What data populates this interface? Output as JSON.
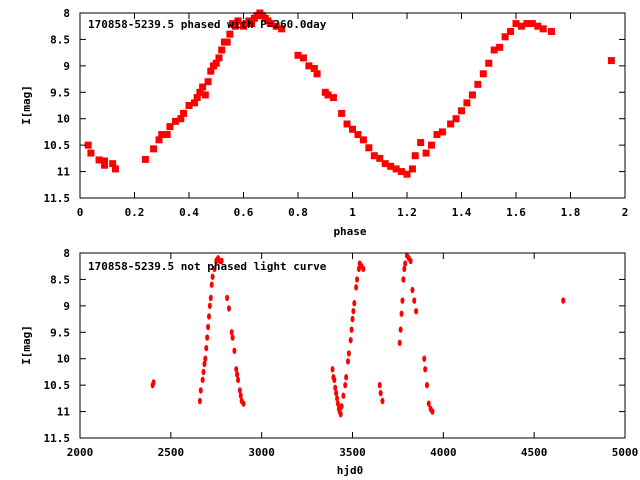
{
  "chart_data": [
    {
      "type": "scatter",
      "title": "170858-5239.5 phased with P=260.0day",
      "xlabel": "phase",
      "ylabel": "I[mag]",
      "xlim": [
        0,
        2
      ],
      "ylim": [
        8,
        11.5
      ],
      "y_inverted": true,
      "xticks": [
        0,
        0.2,
        0.4,
        0.6,
        0.8,
        1,
        1.2,
        1.4,
        1.6,
        1.8,
        2
      ],
      "yticks": [
        8,
        8.5,
        9,
        9.5,
        10,
        10.5,
        11,
        11.5
      ],
      "grid": false,
      "color": "#ff0000",
      "points": [
        [
          0.03,
          10.5
        ],
        [
          0.04,
          10.65
        ],
        [
          0.07,
          10.78
        ],
        [
          0.09,
          10.8
        ],
        [
          0.09,
          10.88
        ],
        [
          0.12,
          10.85
        ],
        [
          0.13,
          10.95
        ],
        [
          0.24,
          10.77
        ],
        [
          0.27,
          10.57
        ],
        [
          0.29,
          10.4
        ],
        [
          0.3,
          10.3
        ],
        [
          0.32,
          10.3
        ],
        [
          0.33,
          10.15
        ],
        [
          0.35,
          10.05
        ],
        [
          0.37,
          10.0
        ],
        [
          0.38,
          9.9
        ],
        [
          0.4,
          9.75
        ],
        [
          0.42,
          9.7
        ],
        [
          0.43,
          9.6
        ],
        [
          0.44,
          9.5
        ],
        [
          0.45,
          9.4
        ],
        [
          0.46,
          9.55
        ],
        [
          0.47,
          9.3
        ],
        [
          0.48,
          9.1
        ],
        [
          0.49,
          9.0
        ],
        [
          0.5,
          8.95
        ],
        [
          0.51,
          8.85
        ],
        [
          0.52,
          8.7
        ],
        [
          0.53,
          8.55
        ],
        [
          0.54,
          8.55
        ],
        [
          0.55,
          8.4
        ],
        [
          0.56,
          8.2
        ],
        [
          0.57,
          8.25
        ],
        [
          0.58,
          8.15
        ],
        [
          0.6,
          8.25
        ],
        [
          0.61,
          8.2
        ],
        [
          0.62,
          8.15
        ],
        [
          0.63,
          8.2
        ],
        [
          0.64,
          8.1
        ],
        [
          0.65,
          8.05
        ],
        [
          0.66,
          8.0
        ],
        [
          0.67,
          8.05
        ],
        [
          0.68,
          8.1
        ],
        [
          0.69,
          8.15
        ],
        [
          0.7,
          8.2
        ],
        [
          0.72,
          8.25
        ],
        [
          0.74,
          8.3
        ],
        [
          0.8,
          8.8
        ],
        [
          0.82,
          8.85
        ],
        [
          0.84,
          9.0
        ],
        [
          0.86,
          9.05
        ],
        [
          0.87,
          9.15
        ],
        [
          0.9,
          9.5
        ],
        [
          0.91,
          9.55
        ],
        [
          0.93,
          9.6
        ],
        [
          0.96,
          9.9
        ],
        [
          0.98,
          10.1
        ],
        [
          1.0,
          10.2
        ],
        [
          1.02,
          10.3
        ],
        [
          1.04,
          10.4
        ],
        [
          1.06,
          10.55
        ],
        [
          1.08,
          10.7
        ],
        [
          1.1,
          10.75
        ],
        [
          1.12,
          10.85
        ],
        [
          1.14,
          10.9
        ],
        [
          1.16,
          10.95
        ],
        [
          1.18,
          11.0
        ],
        [
          1.2,
          11.05
        ],
        [
          1.22,
          10.95
        ],
        [
          1.23,
          10.7
        ],
        [
          1.25,
          10.45
        ],
        [
          1.27,
          10.65
        ],
        [
          1.29,
          10.5
        ],
        [
          1.31,
          10.3
        ],
        [
          1.33,
          10.25
        ],
        [
          1.36,
          10.1
        ],
        [
          1.38,
          10.0
        ],
        [
          1.4,
          9.85
        ],
        [
          1.42,
          9.7
        ],
        [
          1.44,
          9.55
        ],
        [
          1.46,
          9.35
        ],
        [
          1.48,
          9.15
        ],
        [
          1.5,
          8.95
        ],
        [
          1.52,
          8.7
        ],
        [
          1.54,
          8.65
        ],
        [
          1.56,
          8.45
        ],
        [
          1.58,
          8.35
        ],
        [
          1.6,
          8.2
        ],
        [
          1.62,
          8.25
        ],
        [
          1.64,
          8.2
        ],
        [
          1.66,
          8.2
        ],
        [
          1.68,
          8.25
        ],
        [
          1.7,
          8.3
        ],
        [
          1.73,
          8.35
        ],
        [
          1.95,
          8.9
        ]
      ]
    },
    {
      "type": "scatter",
      "title": "170858-5239.5 not phased light curve",
      "xlabel": "hjd0",
      "ylabel": "I[mag]",
      "xlim": [
        2000,
        5000
      ],
      "ylim": [
        8,
        11.5
      ],
      "y_inverted": true,
      "xticks": [
        2000,
        2500,
        3000,
        3500,
        4000,
        4500,
        5000
      ],
      "yticks": [
        8,
        8.5,
        9,
        9.5,
        10,
        10.5,
        11,
        11.5
      ],
      "grid": false,
      "color": "#ff0000",
      "points": [
        [
          2400,
          10.5
        ],
        [
          2405,
          10.45
        ],
        [
          2660,
          10.8
        ],
        [
          2665,
          10.6
        ],
        [
          2675,
          10.4
        ],
        [
          2680,
          10.25
        ],
        [
          2685,
          10.1
        ],
        [
          2690,
          10.0
        ],
        [
          2695,
          9.8
        ],
        [
          2700,
          9.6
        ],
        [
          2705,
          9.4
        ],
        [
          2710,
          9.2
        ],
        [
          2715,
          9.0
        ],
        [
          2720,
          8.85
        ],
        [
          2725,
          8.6
        ],
        [
          2730,
          8.45
        ],
        [
          2740,
          8.3
        ],
        [
          2750,
          8.15
        ],
        [
          2760,
          8.1
        ],
        [
          2770,
          8.15
        ],
        [
          2780,
          8.15
        ],
        [
          2810,
          8.85
        ],
        [
          2820,
          9.05
        ],
        [
          2835,
          9.5
        ],
        [
          2840,
          9.6
        ],
        [
          2850,
          9.85
        ],
        [
          2860,
          10.2
        ],
        [
          2865,
          10.3
        ],
        [
          2870,
          10.4
        ],
        [
          2880,
          10.6
        ],
        [
          2885,
          10.7
        ],
        [
          2890,
          10.8
        ],
        [
          2900,
          10.85
        ],
        [
          3390,
          10.2
        ],
        [
          3395,
          10.35
        ],
        [
          3400,
          10.4
        ],
        [
          3405,
          10.55
        ],
        [
          3410,
          10.65
        ],
        [
          3415,
          10.75
        ],
        [
          3420,
          10.85
        ],
        [
          3425,
          10.95
        ],
        [
          3430,
          11.0
        ],
        [
          3435,
          11.05
        ],
        [
          3440,
          10.9
        ],
        [
          3450,
          10.7
        ],
        [
          3460,
          10.5
        ],
        [
          3465,
          10.35
        ],
        [
          3475,
          10.05
        ],
        [
          3480,
          9.9
        ],
        [
          3490,
          9.65
        ],
        [
          3495,
          9.45
        ],
        [
          3500,
          9.25
        ],
        [
          3505,
          9.1
        ],
        [
          3510,
          8.95
        ],
        [
          3520,
          8.65
        ],
        [
          3525,
          8.5
        ],
        [
          3535,
          8.3
        ],
        [
          3540,
          8.2
        ],
        [
          3550,
          8.25
        ],
        [
          3560,
          8.3
        ],
        [
          3650,
          10.5
        ],
        [
          3655,
          10.65
        ],
        [
          3665,
          10.8
        ],
        [
          3760,
          9.7
        ],
        [
          3765,
          9.45
        ],
        [
          3770,
          9.15
        ],
        [
          3775,
          8.9
        ],
        [
          3780,
          8.5
        ],
        [
          3785,
          8.3
        ],
        [
          3790,
          8.2
        ],
        [
          3800,
          8.05
        ],
        [
          3810,
          8.1
        ],
        [
          3820,
          8.15
        ],
        [
          3830,
          8.7
        ],
        [
          3840,
          8.9
        ],
        [
          3850,
          9.1
        ],
        [
          3895,
          10.0
        ],
        [
          3900,
          10.2
        ],
        [
          3910,
          10.5
        ],
        [
          3920,
          10.85
        ],
        [
          3930,
          10.95
        ],
        [
          3940,
          11.0
        ],
        [
          4660,
          8.9
        ]
      ]
    }
  ]
}
